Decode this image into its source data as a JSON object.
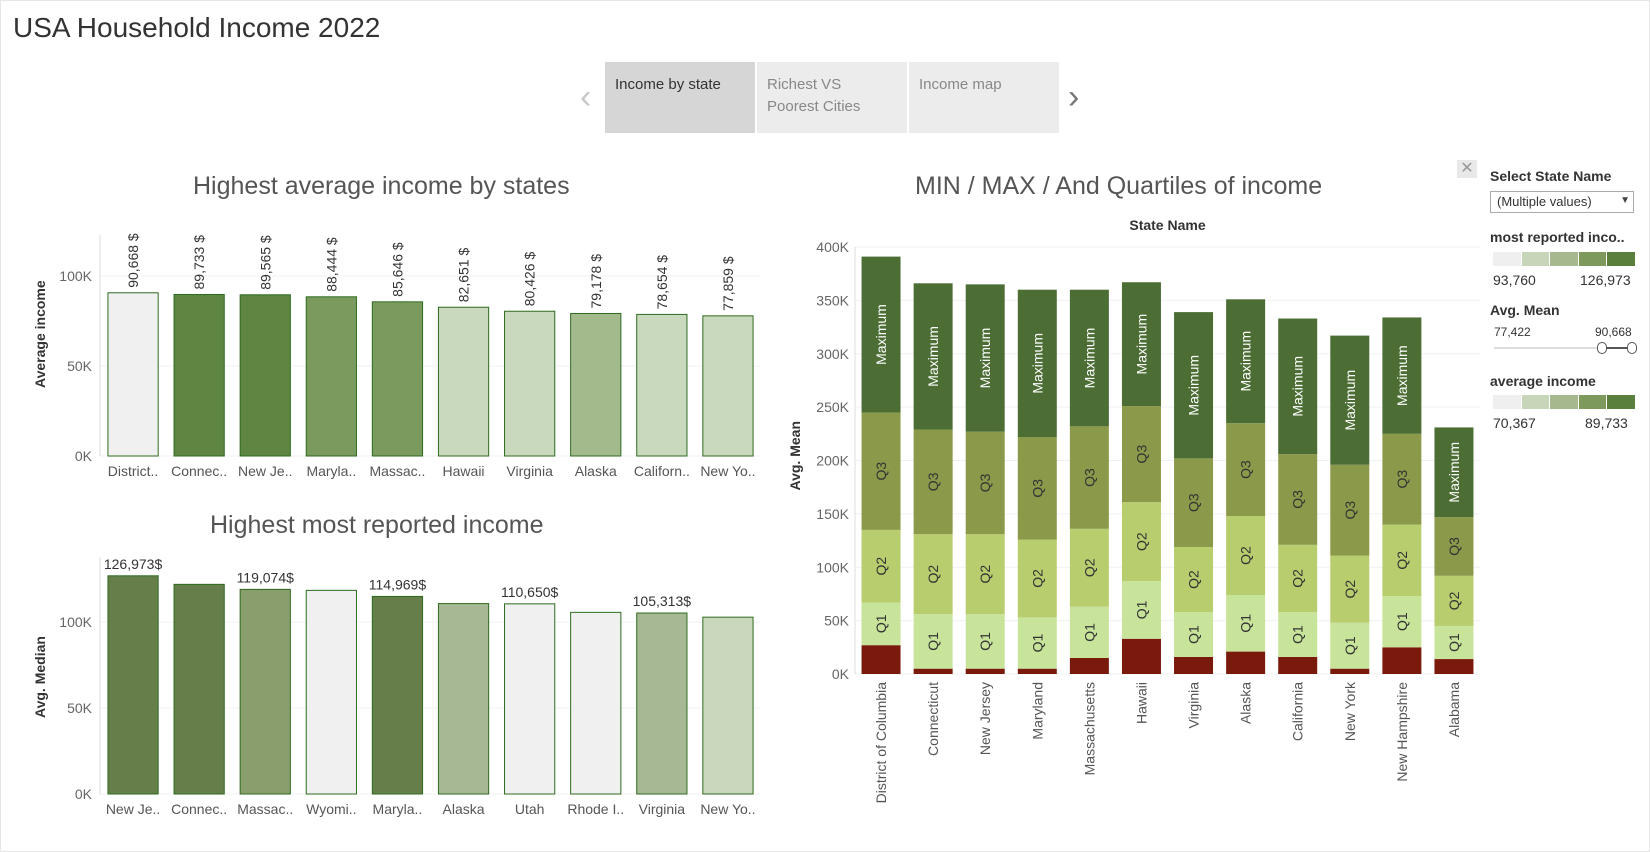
{
  "page_title": "USA Household Income 2022",
  "tabs": [
    {
      "label": "Income by state"
    },
    {
      "label": "Richest VS Poorest Cities"
    },
    {
      "label": "Income map"
    }
  ],
  "sidebar": {
    "filter_label": "Select State Name",
    "filter_value": "(Multiple values)",
    "legend1_label": "most reported inco..",
    "legend1_min": "93,760",
    "legend1_max": "126,973",
    "slider_label": "Avg. Mean",
    "slider_min": "77,422",
    "slider_max": "90,668",
    "legend2_label": "average income",
    "legend2_min": "70,367",
    "legend2_max": "89,733",
    "legend_colors": [
      "#efefef",
      "#c7d6b8",
      "#a5b88e",
      "#7d9a5c",
      "#5a7f3c"
    ]
  },
  "chart_data": [
    {
      "type": "bar",
      "title": "Highest average income by states",
      "ylabel": "Average income",
      "ylim": [
        0,
        120000
      ],
      "yticks": [
        "0K",
        "50K",
        "100K"
      ],
      "categories": [
        "District..",
        "Connec..",
        "New Je..",
        "Maryla..",
        "Massac..",
        "Hawaii",
        "Virginia",
        "Alaska",
        "Californ..",
        "New Yo.."
      ],
      "values": [
        90668,
        89733,
        89565,
        88444,
        85646,
        82651,
        80426,
        79178,
        78654,
        77859
      ],
      "labels": [
        "90,668 $",
        "89,733 $",
        "89,565 $",
        "88,444 $",
        "85,646 $",
        "82,651 $",
        "80,426 $",
        "79,178 $",
        "78,654 $",
        "77,859 $"
      ],
      "colors": [
        "#f0f0f0",
        "#5e8542",
        "#5e8542",
        "#7a9a5e",
        "#7a9a5e",
        "#c9d9bd",
        "#c9d9bd",
        "#a3ba8c",
        "#c9d9bd",
        "#c9d9bd"
      ]
    },
    {
      "type": "bar",
      "title": "Highest most reported income",
      "ylabel": "Avg. Median",
      "ylim": [
        0,
        135000
      ],
      "yticks": [
        "0K",
        "50K",
        "100K"
      ],
      "categories": [
        "New Je..",
        "Connec..",
        "Massac..",
        "Wyomi..",
        "Maryla..",
        "Alaska",
        "Utah",
        "Rhode I..",
        "Virginia",
        "New Yo.."
      ],
      "values": [
        126973,
        122000,
        119074,
        118500,
        114969,
        110800,
        110650,
        105700,
        105313,
        102900
      ],
      "labels": [
        "126,973$",
        "",
        "119,074$",
        "",
        "114,969$",
        "",
        "110,650$",
        "",
        "105,313$",
        ""
      ],
      "colors": [
        "#667f4a",
        "#667f4a",
        "#8a9d6d",
        "#f0f0f0",
        "#667f4a",
        "#a7b994",
        "#f0f0f0",
        "#f0f0f0",
        "#a7b994",
        "#c9d7bd"
      ]
    },
    {
      "type": "bar",
      "stacked": true,
      "title": "MIN / MAX / And Quartiles of income",
      "header": "State Name",
      "ylabel": "Avg. Mean",
      "ylim": [
        0,
        400000
      ],
      "yticks": [
        "0K",
        "50K",
        "100K",
        "150K",
        "200K",
        "250K",
        "300K",
        "350K",
        "400K"
      ],
      "categories": [
        "District of Columbia",
        "Connecticut",
        "New Jersey",
        "Maryland",
        "Massachusetts",
        "Hawaii",
        "Virginia",
        "Alaska",
        "California",
        "New York",
        "New Hampshire",
        "Alabama"
      ],
      "series": [
        {
          "name": "Min",
          "color": "#7a1a0c",
          "values": [
            27000,
            5000,
            5000,
            5000,
            15000,
            33000,
            16000,
            21000,
            16000,
            5000,
            25000,
            14000
          ]
        },
        {
          "name": "Q1",
          "color": "#c7e49a",
          "values": [
            40000,
            51000,
            51000,
            48000,
            48000,
            54000,
            42000,
            53000,
            42000,
            43000,
            48000,
            31000
          ]
        },
        {
          "name": "Q2",
          "color": "#b8cd6e",
          "values": [
            68000,
            75000,
            75000,
            73000,
            73000,
            74000,
            61000,
            74000,
            63000,
            63000,
            67000,
            47000
          ]
        },
        {
          "name": "Q3",
          "color": "#8a9a4a",
          "values": [
            110000,
            98000,
            96000,
            96000,
            96000,
            90000,
            83000,
            87000,
            85000,
            85000,
            85000,
            55000
          ]
        },
        {
          "name": "Maximum",
          "color": "#4c6e35",
          "values": [
            146000,
            137000,
            138000,
            138000,
            128000,
            116000,
            137000,
            116000,
            127000,
            121000,
            109000,
            84000
          ]
        }
      ],
      "segment_labels": [
        "",
        "Q1",
        "Q2",
        "Q3",
        "Maximum"
      ]
    }
  ]
}
